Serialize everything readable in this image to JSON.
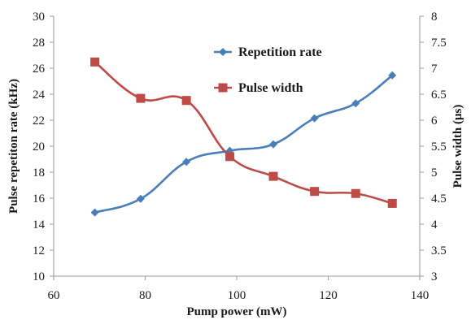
{
  "chart_data": {
    "type": "line",
    "x": [
      69,
      79,
      89,
      98.5,
      108,
      117,
      126,
      134
    ],
    "xlabel": "Pump power (mW)",
    "xlim": [
      60,
      140
    ],
    "xticks": [
      "60",
      "80",
      "100",
      "120",
      "140"
    ],
    "ylabel_left": "Pulse repetiton rate (kHz)",
    "ylim_left": [
      10,
      30
    ],
    "yticks_left": [
      "10",
      "12",
      "14",
      "16",
      "18",
      "20",
      "22",
      "24",
      "26",
      "28",
      "30"
    ],
    "ylabel_right": "Pulse width (μs)",
    "ylim_right": [
      3,
      8
    ],
    "yticks_right": [
      "3",
      "3.5",
      "4",
      "4.5",
      "5",
      "5.5",
      "6",
      "6.5",
      "7",
      "7.5",
      "8"
    ],
    "grid": false,
    "legend_position": "top-right",
    "series": [
      {
        "name": "Repetition rate",
        "axis": "left",
        "marker": "diamond",
        "color": "#4a7ebb",
        "values": [
          14.9,
          15.95,
          18.8,
          19.65,
          20.15,
          22.15,
          23.3,
          25.45
        ]
      },
      {
        "name": "Pulse width",
        "axis": "right",
        "marker": "square",
        "color": "#be4b48",
        "values": [
          7.12,
          6.42,
          6.38,
          5.3,
          4.92,
          4.63,
          4.59,
          4.4
        ]
      }
    ]
  }
}
